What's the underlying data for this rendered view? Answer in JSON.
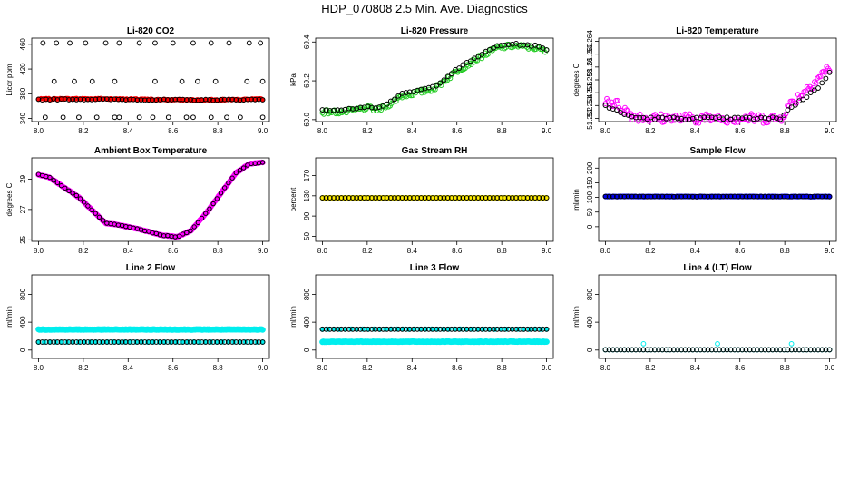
{
  "figure_title": "HDP_070808  2.5 Min. Ave. Diagnostics",
  "chart_data": [
    {
      "type": "scatter",
      "title": "Li-820 CO2",
      "xlabel": "",
      "ylabel": "Licor ppm",
      "xlim": [
        7.97,
        9.03
      ],
      "ylim": [
        335,
        470
      ],
      "xticks": [
        8.0,
        8.2,
        8.4,
        8.6,
        8.8,
        9.0
      ],
      "xtick_labels": [
        "8.0",
        "8.2",
        "8.4",
        "8.6",
        "8.8",
        "9.0"
      ],
      "yticks": [
        340,
        380,
        420,
        460
      ],
      "ytick_labels": [
        "340",
        "380",
        "420",
        "460"
      ],
      "series": [
        {
          "name": "primary",
          "color": "#ff0000",
          "filled": true,
          "marker_size": 2.0,
          "pattern": "sine",
          "a": 370,
          "b": 372,
          "phase": 0.35,
          "freq": 1.0,
          "noise": 1.2,
          "n": 260
        },
        {
          "name": "secondary",
          "color": "#000000",
          "filled": false,
          "marker_size": 2.4,
          "pattern": "sine",
          "a": 370,
          "b": 371,
          "phase": 0.4,
          "freq": 1.0,
          "noise": 0.8,
          "n": 60
        },
        {
          "name": "outliers",
          "color": "#000000",
          "filled": false,
          "marker_size": 2.4,
          "points": [
            [
              8.02,
              462
            ],
            [
              8.08,
              462
            ],
            [
              8.14,
              462
            ],
            [
              8.21,
              462
            ],
            [
              8.3,
              462
            ],
            [
              8.36,
              462
            ],
            [
              8.45,
              462
            ],
            [
              8.52,
              462
            ],
            [
              8.6,
              462
            ],
            [
              8.69,
              462
            ],
            [
              8.77,
              462
            ],
            [
              8.85,
              462
            ],
            [
              8.94,
              462
            ],
            [
              8.99,
              462
            ],
            [
              8.07,
              400
            ],
            [
              8.16,
              400
            ],
            [
              8.24,
              400
            ],
            [
              8.34,
              400
            ],
            [
              8.52,
              400
            ],
            [
              8.64,
              400
            ],
            [
              8.71,
              400
            ],
            [
              8.79,
              400
            ],
            [
              8.93,
              400
            ],
            [
              9.0,
              400
            ],
            [
              8.03,
              342
            ],
            [
              8.11,
              342
            ],
            [
              8.18,
              342
            ],
            [
              8.26,
              342
            ],
            [
              8.34,
              342
            ],
            [
              8.36,
              342
            ],
            [
              8.45,
              342
            ],
            [
              8.51,
              342
            ],
            [
              8.58,
              342
            ],
            [
              8.66,
              342
            ],
            [
              8.69,
              342
            ],
            [
              8.77,
              342
            ],
            [
              8.84,
              342
            ],
            [
              8.9,
              342
            ],
            [
              9.0,
              342
            ]
          ]
        }
      ]
    },
    {
      "type": "scatter",
      "title": "Li-820 Pressure",
      "xlabel": "",
      "ylabel": "kPa",
      "xlim": [
        7.97,
        9.03
      ],
      "ylim": [
        68.99,
        69.42
      ],
      "xticks": [
        8.0,
        8.2,
        8.4,
        8.6,
        8.8,
        9.0
      ],
      "xtick_labels": [
        "8.0",
        "8.2",
        "8.4",
        "8.6",
        "8.8",
        "9.0"
      ],
      "yticks": [
        69.0,
        69.2,
        69.4
      ],
      "ytick_labels": [
        "69.0",
        "69.2",
        "69.4"
      ],
      "series": [
        {
          "name": "primary",
          "color": "#22cc22",
          "filled": false,
          "marker_size": 2.4,
          "pattern": "profile",
          "profile": [
            [
              8.0,
              69.04
            ],
            [
              8.1,
              69.04
            ],
            [
              8.2,
              69.06
            ],
            [
              8.25,
              69.05
            ],
            [
              8.3,
              69.08
            ],
            [
              8.35,
              69.12
            ],
            [
              8.5,
              69.16
            ],
            [
              8.6,
              69.25
            ],
            [
              8.7,
              69.32
            ],
            [
              8.78,
              69.37
            ],
            [
              8.85,
              69.38
            ],
            [
              8.95,
              69.37
            ],
            [
              9.0,
              69.35
            ]
          ],
          "noise": 0.012,
          "n": 150
        },
        {
          "name": "secondary",
          "color": "#000000",
          "filled": false,
          "marker_size": 2.4,
          "pattern": "profile",
          "profile": [
            [
              8.0,
              69.05
            ],
            [
              8.1,
              69.05
            ],
            [
              8.2,
              69.07
            ],
            [
              8.25,
              69.06
            ],
            [
              8.3,
              69.09
            ],
            [
              8.35,
              69.13
            ],
            [
              8.5,
              69.17
            ],
            [
              8.6,
              69.26
            ],
            [
              8.7,
              69.33
            ],
            [
              8.78,
              69.38
            ],
            [
              8.85,
              69.39
            ],
            [
              8.95,
              69.38
            ],
            [
              9.0,
              69.36
            ]
          ],
          "noise": 0.004,
          "n": 60
        }
      ]
    },
    {
      "type": "scatter",
      "title": "Li-820 Temperature",
      "xlabel": "",
      "ylabel": "degrees C",
      "xlim": [
        7.97,
        9.03
      ],
      "ylim": [
        51.2515,
        51.2645
      ],
      "xticks": [
        8.0,
        8.2,
        8.4,
        8.6,
        8.8,
        9.0
      ],
      "xtick_labels": [
        "8.0",
        "8.2",
        "8.4",
        "8.6",
        "8.8",
        "9.0"
      ],
      "yticks": [
        51.252,
        51.254,
        51.256,
        51.258,
        51.26,
        51.262,
        51.264
      ],
      "ytick_labels": [
        "51.252",
        "51.254",
        "51.256",
        "51.258",
        "51.26",
        "51.262",
        "51.264"
      ],
      "series": [
        {
          "name": "primary",
          "color": "#ff00ff",
          "filled": false,
          "marker_size": 2.4,
          "pattern": "profile",
          "profile": [
            [
              8.0,
              51.255
            ],
            [
              8.06,
              51.254
            ],
            [
              8.12,
              51.2525
            ],
            [
              8.2,
              51.252
            ],
            [
              8.78,
              51.252
            ],
            [
              8.82,
              51.254
            ],
            [
              8.88,
              51.256
            ],
            [
              8.94,
              51.258
            ],
            [
              9.0,
              51.26
            ]
          ],
          "noise": 0.0008,
          "n": 150
        },
        {
          "name": "secondary",
          "color": "#000000",
          "filled": false,
          "marker_size": 2.4,
          "pattern": "profile",
          "profile": [
            [
              8.0,
              51.254
            ],
            [
              8.06,
              51.253
            ],
            [
              8.12,
              51.2522
            ],
            [
              8.2,
              51.252
            ],
            [
              8.78,
              51.252
            ],
            [
              8.82,
              51.2535
            ],
            [
              8.88,
              51.255
            ],
            [
              8.94,
              51.2565
            ],
            [
              9.0,
              51.259
            ]
          ],
          "noise": 0.0002,
          "n": 60
        }
      ]
    },
    {
      "type": "scatter",
      "title": "Ambient Box Temperature",
      "xlabel": "",
      "ylabel": "degrees C",
      "xlim": [
        7.97,
        9.03
      ],
      "ylim": [
        24.9,
        30.4
      ],
      "xticks": [
        8.0,
        8.2,
        8.4,
        8.6,
        8.8,
        9.0
      ],
      "xtick_labels": [
        "8.0",
        "8.2",
        "8.4",
        "8.6",
        "8.8",
        "9.0"
      ],
      "yticks": [
        25,
        27,
        29
      ],
      "ytick_labels": [
        "25",
        "27",
        "29"
      ],
      "series": [
        {
          "name": "primary",
          "color": "#ff00ff",
          "filled": true,
          "marker_size": 2.6,
          "pattern": "profile",
          "profile": [
            [
              8.0,
              29.3
            ],
            [
              8.05,
              29.1
            ],
            [
              8.1,
              28.6
            ],
            [
              8.18,
              27.8
            ],
            [
              8.25,
              26.8
            ],
            [
              8.3,
              26.1
            ],
            [
              8.35,
              26.0
            ],
            [
              8.45,
              25.7
            ],
            [
              8.55,
              25.3
            ],
            [
              8.62,
              25.2
            ],
            [
              8.68,
              25.6
            ],
            [
              8.75,
              26.8
            ],
            [
              8.82,
              28.2
            ],
            [
              8.88,
              29.4
            ],
            [
              8.94,
              30.0
            ],
            [
              9.0,
              30.1
            ]
          ],
          "noise": 0.02,
          "n": 230
        },
        {
          "name": "secondary",
          "color": "#000000",
          "filled": false,
          "marker_size": 2.2,
          "pattern": "profile",
          "profile": [
            [
              8.0,
              29.3
            ],
            [
              8.05,
              29.1
            ],
            [
              8.1,
              28.6
            ],
            [
              8.18,
              27.8
            ],
            [
              8.25,
              26.8
            ],
            [
              8.3,
              26.1
            ],
            [
              8.35,
              26.0
            ],
            [
              8.45,
              25.7
            ],
            [
              8.55,
              25.3
            ],
            [
              8.62,
              25.2
            ],
            [
              8.68,
              25.6
            ],
            [
              8.75,
              26.8
            ],
            [
              8.82,
              28.2
            ],
            [
              8.88,
              29.4
            ],
            [
              8.94,
              30.0
            ],
            [
              9.0,
              30.1
            ]
          ],
          "noise": 0.02,
          "n": 60
        }
      ]
    },
    {
      "type": "scatter",
      "title": "Gas Stream RH",
      "xlabel": "",
      "ylabel": "percent",
      "xlim": [
        7.97,
        9.03
      ],
      "ylim": [
        40,
        205
      ],
      "xticks": [
        8.0,
        8.2,
        8.4,
        8.6,
        8.8,
        9.0
      ],
      "xtick_labels": [
        "8.0",
        "8.2",
        "8.4",
        "8.6",
        "8.8",
        "9.0"
      ],
      "yticks": [
        50,
        90,
        130,
        170
      ],
      "ytick_labels": [
        "50",
        "90",
        "130",
        "170"
      ],
      "series": [
        {
          "name": "primary",
          "color": "#ffee00",
          "filled": true,
          "marker_size": 2.4,
          "pattern": "sine",
          "a": 126,
          "b": 126,
          "phase": 0,
          "freq": 1.0,
          "noise": 0,
          "n": 220
        },
        {
          "name": "secondary",
          "color": "#000000",
          "filled": false,
          "marker_size": 2.4,
          "pattern": "sine",
          "a": 126,
          "b": 126,
          "phase": 0,
          "freq": 1.0,
          "noise": 0,
          "n": 60
        }
      ]
    },
    {
      "type": "scatter",
      "title": "Sample Flow",
      "xlabel": "",
      "ylabel": "ml/min",
      "xlim": [
        7.97,
        9.03
      ],
      "ylim": [
        -50,
        235
      ],
      "xticks": [
        8.0,
        8.2,
        8.4,
        8.6,
        8.8,
        9.0
      ],
      "xtick_labels": [
        "8.0",
        "8.2",
        "8.4",
        "8.6",
        "8.8",
        "9.0"
      ],
      "yticks": [
        0,
        50,
        100,
        150,
        200
      ],
      "ytick_labels": [
        "0",
        "50",
        "100",
        "150",
        "200"
      ],
      "series": [
        {
          "name": "primary",
          "color": "#0000ee",
          "filled": true,
          "marker_size": 2.4,
          "pattern": "sine",
          "a": 103,
          "b": 103,
          "phase": 0,
          "freq": 1.0,
          "noise": 0.8,
          "n": 240
        },
        {
          "name": "secondary",
          "color": "#000000",
          "filled": false,
          "marker_size": 2.4,
          "pattern": "sine",
          "a": 103,
          "b": 103,
          "phase": 0,
          "freq": 1.0,
          "noise": 0.6,
          "n": 60
        }
      ]
    },
    {
      "type": "scatter",
      "title": "Line 2 Flow",
      "xlabel": "",
      "ylabel": "ml/min",
      "xlim": [
        7.97,
        9.03
      ],
      "ylim": [
        -120,
        1080
      ],
      "xticks": [
        8.0,
        8.2,
        8.4,
        8.6,
        8.8,
        9.0
      ],
      "xtick_labels": [
        "8.0",
        "8.2",
        "8.4",
        "8.6",
        "8.8",
        "9.0"
      ],
      "yticks": [
        0,
        400,
        800
      ],
      "ytick_labels": [
        "0",
        "400",
        "800"
      ],
      "series": [
        {
          "name": "primary",
          "color": "#00eeee",
          "filled": true,
          "marker_size": 2.8,
          "pattern": "sine",
          "a": 295,
          "b": 295,
          "phase": 0,
          "freq": 1.0,
          "noise": 4,
          "n": 240
        },
        {
          "name": "secondary",
          "color": "#00eeee",
          "filled": true,
          "marker_size": 2.4,
          "pattern": "sine",
          "a": 115,
          "b": 115,
          "phase": 0,
          "freq": 1.0,
          "noise": 2,
          "n": 40
        },
        {
          "name": "tertiary",
          "color": "#000000",
          "filled": false,
          "marker_size": 2.4,
          "pattern": "sine",
          "a": 115,
          "b": 115,
          "phase": 0,
          "freq": 1.0,
          "noise": 0,
          "n": 60
        }
      ]
    },
    {
      "type": "scatter",
      "title": "Line 3 Flow",
      "xlabel": "",
      "ylabel": "ml/min",
      "xlim": [
        7.97,
        9.03
      ],
      "ylim": [
        -120,
        1080
      ],
      "xticks": [
        8.0,
        8.2,
        8.4,
        8.6,
        8.8,
        9.0
      ],
      "xtick_labels": [
        "8.0",
        "8.2",
        "8.4",
        "8.6",
        "8.8",
        "9.0"
      ],
      "yticks": [
        0,
        400,
        800
      ],
      "ytick_labels": [
        "0",
        "400",
        "800"
      ],
      "series": [
        {
          "name": "primary",
          "color": "#00eeee",
          "filled": true,
          "marker_size": 2.8,
          "pattern": "sine",
          "a": 120,
          "b": 120,
          "phase": 0,
          "freq": 1.0,
          "noise": 4,
          "n": 240
        },
        {
          "name": "secondary",
          "color": "#00eeee",
          "filled": true,
          "marker_size": 2.4,
          "pattern": "sine",
          "a": 300,
          "b": 300,
          "phase": 0,
          "freq": 1.0,
          "noise": 2,
          "n": 40
        },
        {
          "name": "tertiary",
          "color": "#000000",
          "filled": false,
          "marker_size": 2.4,
          "pattern": "sine",
          "a": 300,
          "b": 300,
          "phase": 0,
          "freq": 1.0,
          "noise": 0,
          "n": 60
        }
      ]
    },
    {
      "type": "scatter",
      "title": "Line 4 (LT) Flow",
      "xlabel": "",
      "ylabel": "ml/min",
      "xlim": [
        7.97,
        9.03
      ],
      "ylim": [
        -120,
        1080
      ],
      "xticks": [
        8.0,
        8.2,
        8.4,
        8.6,
        8.8,
        9.0
      ],
      "xtick_labels": [
        "8.0",
        "8.2",
        "8.4",
        "8.6",
        "8.8",
        "9.0"
      ],
      "yticks": [
        0,
        400,
        800
      ],
      "ytick_labels": [
        "0",
        "400",
        "800"
      ],
      "series": [
        {
          "name": "primary",
          "color": "#00eeee",
          "filled": false,
          "marker_size": 2.4,
          "pattern": "sine",
          "a": 5,
          "b": 5,
          "phase": 0,
          "freq": 1.0,
          "noise": 0,
          "n": 60
        },
        {
          "name": "secondary",
          "color": "#000000",
          "filled": false,
          "marker_size": 2.4,
          "pattern": "sine",
          "a": 5,
          "b": 5,
          "phase": 0,
          "freq": 1.0,
          "noise": 0,
          "n": 60
        },
        {
          "name": "outliers",
          "color": "#00eeee",
          "filled": false,
          "marker_size": 2.4,
          "points": [
            [
              8.17,
              90
            ],
            [
              8.5,
              90
            ],
            [
              8.83,
              90
            ]
          ]
        }
      ]
    }
  ]
}
